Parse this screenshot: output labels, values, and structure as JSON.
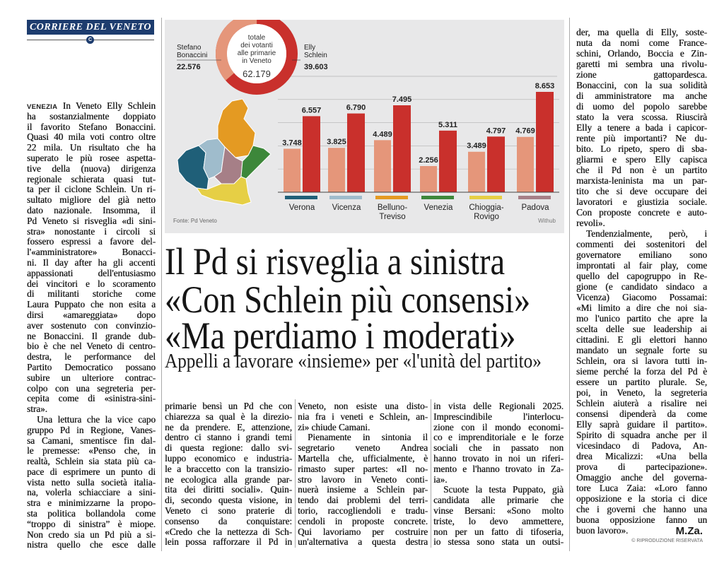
{
  "masthead": {
    "title": "CORRIERE DEL VENETO",
    "mark": "C"
  },
  "headline": {
    "line1": "Il Pd si risveglia a sinistra",
    "line2": "«Con Schlein più consensi»",
    "line3": "«Ma perdiamo i moderati»",
    "subtitle": "Appelli a lavorare «insieme» per «l'unità del partito»"
  },
  "colors": {
    "bonaccini": "#e5967a",
    "schlein": "#c9302c",
    "verona": "#1f5f78",
    "vicenza": "#9fbccc",
    "belluno_treviso": "#e49a22",
    "venezia": "#3d873a",
    "chioggia_rovigo": "#e6cf45",
    "padova": "#a67f87"
  },
  "chart_data": {
    "type": "bar",
    "donut": {
      "center_lines": [
        "totale",
        "dei votanti",
        "alle primarie",
        "in Veneto"
      ],
      "total": "62.179",
      "slices": [
        {
          "name_lines": [
            "Stefano",
            "Bonaccini"
          ],
          "label": "22.576",
          "value": 22576
        },
        {
          "name_lines": [
            "Elly",
            "Schlein"
          ],
          "label": "39.603",
          "value": 39603
        }
      ]
    },
    "categories": [
      [
        "Verona"
      ],
      [
        "Vicenza"
      ],
      [
        "Belluno-",
        "Treviso"
      ],
      [
        "Venezia"
      ],
      [
        "Chioggia-",
        "Rovigo"
      ],
      [
        "Padova"
      ]
    ],
    "series": [
      {
        "name": "Stefano Bonaccini",
        "values": [
          3748,
          3825,
          4489,
          2256,
          3489,
          4769
        ],
        "labels": [
          "3.748",
          "3.825",
          "4.489",
          "2.256",
          "3.489",
          "4.769"
        ]
      },
      {
        "name": "Elly Schlein",
        "values": [
          6557,
          6790,
          7495,
          5311,
          4797,
          8653
        ],
        "labels": [
          "6.557",
          "6.790",
          "7.495",
          "5.311",
          "4.797",
          "8.653"
        ]
      }
    ],
    "ylim": [
      0,
      9000
    ],
    "grid_step": 2000,
    "source": "Fonte: Pd Veneto",
    "credit": "Withub"
  },
  "columns": {
    "left": {
      "dateline": "VENEZIA",
      "paragraphs": [
        [
          "In Veneto Elly Schlein",
          "ha sostanzialmente doppiato",
          "il favorito Stefano Bonaccini.",
          "Quasi 40 mila voti contro oltre",
          "22 mila. Un risultato che ha",
          "superato le più rosee aspetta-",
          "tive della (nuova) dirigenza",
          "regionale schierata quasi tut-",
          "ta per il ciclone Schlein. Un ri-",
          "sultato migliore del già netto",
          "dato nazionale. Insomma, il",
          "Pd Veneto si risveglia «di sini-",
          "stra» nonostante i circoli si",
          "fossero espressi a favore del-",
          "l'«amministratore» Bonacci-",
          "ni. Il day after ha gli accenti",
          "appassionati dell'entusiasmo",
          "dei vincitori e lo scoramento",
          "di militanti storiche come",
          "Laura Puppato che non esita a",
          "dirsi «amareggiata» dopo",
          "aver sostenuto con convinzio-",
          "ne Bonaccini. Il grande dub-",
          "bio è che nel Veneto di centro-",
          "destra, le performance del",
          "Partito Democratico possano",
          "subire un ulteriore contrac-",
          "colpo con una segreteria per-",
          "cepita come di «sinistra-sini-",
          "stra»."
        ],
        [
          "Una lettura che la vice capo",
          "gruppo Pd in Regione, Vanes-",
          "sa Camani, smentisce fin dal-",
          "le premesse: «Penso che, in",
          "realtà, Schlein sia stata più ca-",
          "pace di esprimere un punto di",
          "vista netto sulla società italia-",
          "na, volerla schiacciare a sini-",
          "stra e minimizzarne la propo-",
          "sta politica bollandola come",
          "“troppo di sinistra” è miope.",
          "Non credo sia un Pd più a si-",
          "nistra quello che esce dalle"
        ]
      ]
    },
    "bottom1": {
      "paragraphs": [
        [
          "primarie bensì un Pd che con",
          "chiarezza sa qual è la direzio-",
          "ne da prendere. E, attenzione,",
          "dentro ci stanno i grandi temi",
          "di questa regione: dallo svi-",
          "luppo economico e industria-",
          "le a braccetto con la transizio-",
          "ne ecologica alla grande par-",
          "tita dei diritti sociali». Quin-",
          "di, secondo questa visione, in",
          "Veneto ci sono praterie di",
          "consenso da conquistare:",
          "«Credo che la nettezza di Sch-",
          "lein possa rafforzare il Pd in"
        ]
      ]
    },
    "bottom2": {
      "paragraphs": [
        [
          "Veneto, non esiste una disto-",
          "nia fra i veneti e Schlein, an-",
          "zi» chiude Camani."
        ],
        [
          "Pienamente in sintonia il",
          "segretario veneto Andrea",
          "Martella che, ufficialmente, è",
          "rimasto super partes: «Il no-",
          "stro lavoro in Veneto conti-",
          "nuerà insieme a Schlein par-",
          "tendo dai problemi del terri-",
          "torio, raccogliendoli e tradu-",
          "cendoli in proposte concrete.",
          "Qui lavoriamo per costruire",
          "un'alternativa a questa destra"
        ]
      ]
    },
    "bottom3": {
      "paragraphs": [
        [
          "in vista delle Regionali 2025.",
          "Imprescindibile l'interlocu-",
          "zione con il mondo economi-",
          "co e imprenditoriale e le forze",
          "sociali che in passato non",
          "hanno trovato in noi un riferi-",
          "mento e l'hanno trovato in Za-",
          "ia»."
        ],
        [
          "Scuote la testa Puppato, già",
          "candidata alle primarie che",
          "vinse Bersani: «Sono molto",
          "triste, lo devo ammettere,",
          "non per un fatto di tifoseria,",
          "io stessa sono stata un outsi-"
        ]
      ]
    },
    "right": {
      "paragraphs": [
        [
          "der, ma quella di Elly, soste-",
          "nuta da nomi come France-",
          "schini, Orlando, Boccia e Zin-",
          "garetti mi sembra una rivolu-",
          "zione gattopardesca.",
          "Bonaccini, con la sua solidità",
          "di amministratore ma anche",
          "di uomo del popolo sarebbe",
          "stato la vera scossa. Riuscirà",
          "Elly a tenere a bada i capicor-",
          "rente più importanti? Ne du-",
          "bito. Lo ripeto, spero di sba-",
          "gliarmi e spero Elly capisca",
          "che il Pd non è un partito",
          "marxista-leninista ma un par-",
          "tito che si deve occupare dei",
          "lavoratori e giustizia sociale.",
          "Con proposte concrete e auto-",
          "revoli»."
        ],
        [
          "Tendenzialmente, però, i",
          "commenti dei sostenitori del",
          "governatore emiliano sono",
          "improntati al fair play, come",
          "quello del capogruppo in Re-",
          "gione (e candidato sindaco a",
          "Vicenza) Giacomo Possamai:",
          "«Mi limito a dire che noi sia-",
          "mo l'unico partito che apre la",
          "scelta delle sue leadership ai",
          "cittadini. E gli elettori hanno",
          "mandato un segnale forte su",
          "Schlein, ora si lavora tutti in-",
          "sieme perché la forza del Pd è",
          "essere un partito plurale. Se,",
          "poi, in Veneto, la segreteria",
          "Schlein aiuterà a risalire nei",
          "consensi dipenderà da come",
          "Elly saprà guidare il partito».",
          "Spirito di squadra anche per il",
          "vicesindaco di Padova, An-",
          "drea Micalizzi: «Una bella",
          "prova di partecipazione».",
          "Omaggio anche del governa-",
          "tore Luca Zaia: «Loro fanno",
          "opposizione e la storia ci dice",
          "che i governi che hanno una",
          "buona opposizione fanno un",
          "buon lavoro»."
        ]
      ]
    }
  },
  "signature": "M.Za.",
  "copyright": "© RIPRODUZIONE RISERVATA"
}
